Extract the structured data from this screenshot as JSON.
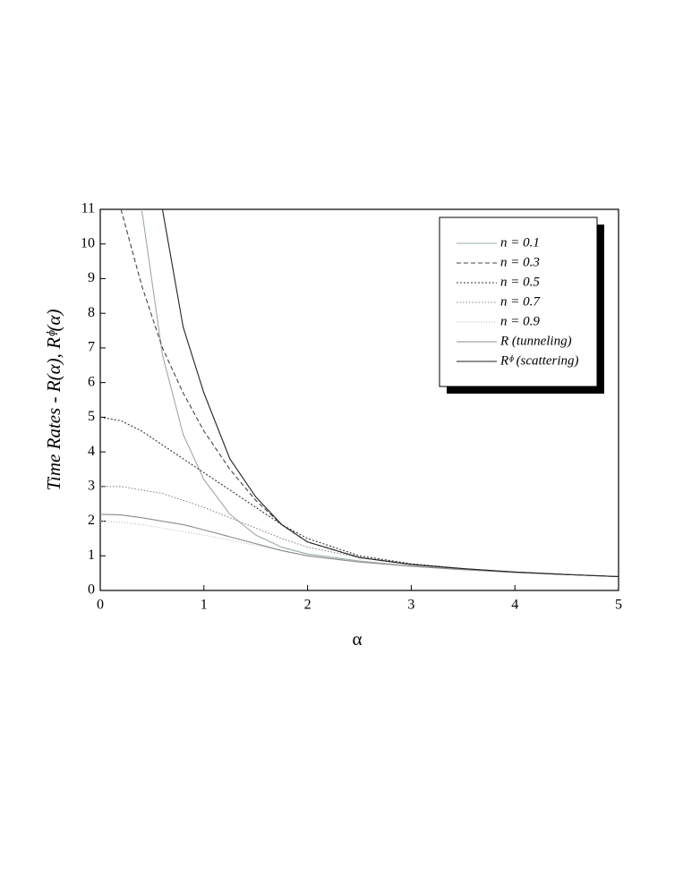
{
  "chart_data": {
    "type": "line",
    "y_label": "Time Rates  -  R(α),  Rᶲ(α)",
    "x_label": "α",
    "x": [
      0,
      0.2,
      0.4,
      0.6,
      0.8,
      1,
      1.25,
      1.5,
      1.75,
      2,
      2.5,
      3,
      3.5,
      4,
      4.5,
      5
    ],
    "xlim": [
      0,
      5
    ],
    "ylim": [
      0,
      11
    ],
    "xticks": [
      0,
      1,
      2,
      3,
      4,
      5
    ],
    "yticks": [
      0,
      1,
      2,
      3,
      4,
      5,
      6,
      7,
      8,
      9,
      10,
      11
    ],
    "legend_position": "upper right",
    "series": [
      {
        "name": "n = 0.1",
        "color": "#9aaba6",
        "dash": "none",
        "values": [
          null,
          null,
          11,
          6.8,
          4.5,
          3.2,
          2.2,
          1.6,
          1.25,
          1.05,
          0.85,
          0.7,
          0.6,
          0.52,
          0.46,
          0.4
        ]
      },
      {
        "name": "n = 0.3",
        "color": "#444444",
        "dash": "5,3",
        "values": [
          null,
          11,
          8.8,
          7.0,
          5.7,
          4.6,
          3.5,
          2.6,
          1.9,
          1.4,
          0.95,
          0.75,
          0.62,
          0.53,
          0.46,
          0.4
        ]
      },
      {
        "name": "n = 0.5",
        "color": "#333333",
        "dash": "2,2",
        "values": [
          5,
          4.9,
          4.6,
          4.2,
          3.8,
          3.4,
          2.9,
          2.4,
          1.9,
          1.5,
          1.0,
          0.77,
          0.63,
          0.53,
          0.46,
          0.4
        ]
      },
      {
        "name": "n = 0.7",
        "color": "#888888",
        "dash": "1.5,2",
        "values": [
          3,
          3.0,
          2.9,
          2.8,
          2.6,
          2.4,
          2.1,
          1.8,
          1.5,
          1.25,
          0.95,
          0.75,
          0.62,
          0.53,
          0.46,
          0.4
        ]
      },
      {
        "name": "n = 0.9",
        "color": "#bbbbbb",
        "dash": "1,2",
        "values": [
          2.0,
          1.97,
          1.9,
          1.8,
          1.7,
          1.6,
          1.45,
          1.3,
          1.15,
          1.0,
          0.85,
          0.72,
          0.62,
          0.53,
          0.46,
          0.4
        ]
      },
      {
        "name": "R (tunneling)",
        "color": "#8c8c8c",
        "dash": "none",
        "values": [
          2.2,
          2.18,
          2.1,
          2.0,
          1.9,
          1.75,
          1.55,
          1.35,
          1.15,
          1.0,
          0.82,
          0.7,
          0.6,
          0.52,
          0.46,
          0.4
        ]
      },
      {
        "name": "Rᶲ (scattering)",
        "color": "#222222",
        "dash": "none",
        "values": [
          null,
          null,
          null,
          11,
          7.6,
          5.7,
          3.8,
          2.7,
          1.9,
          1.4,
          0.95,
          0.75,
          0.63,
          0.53,
          0.46,
          0.4
        ]
      }
    ]
  }
}
